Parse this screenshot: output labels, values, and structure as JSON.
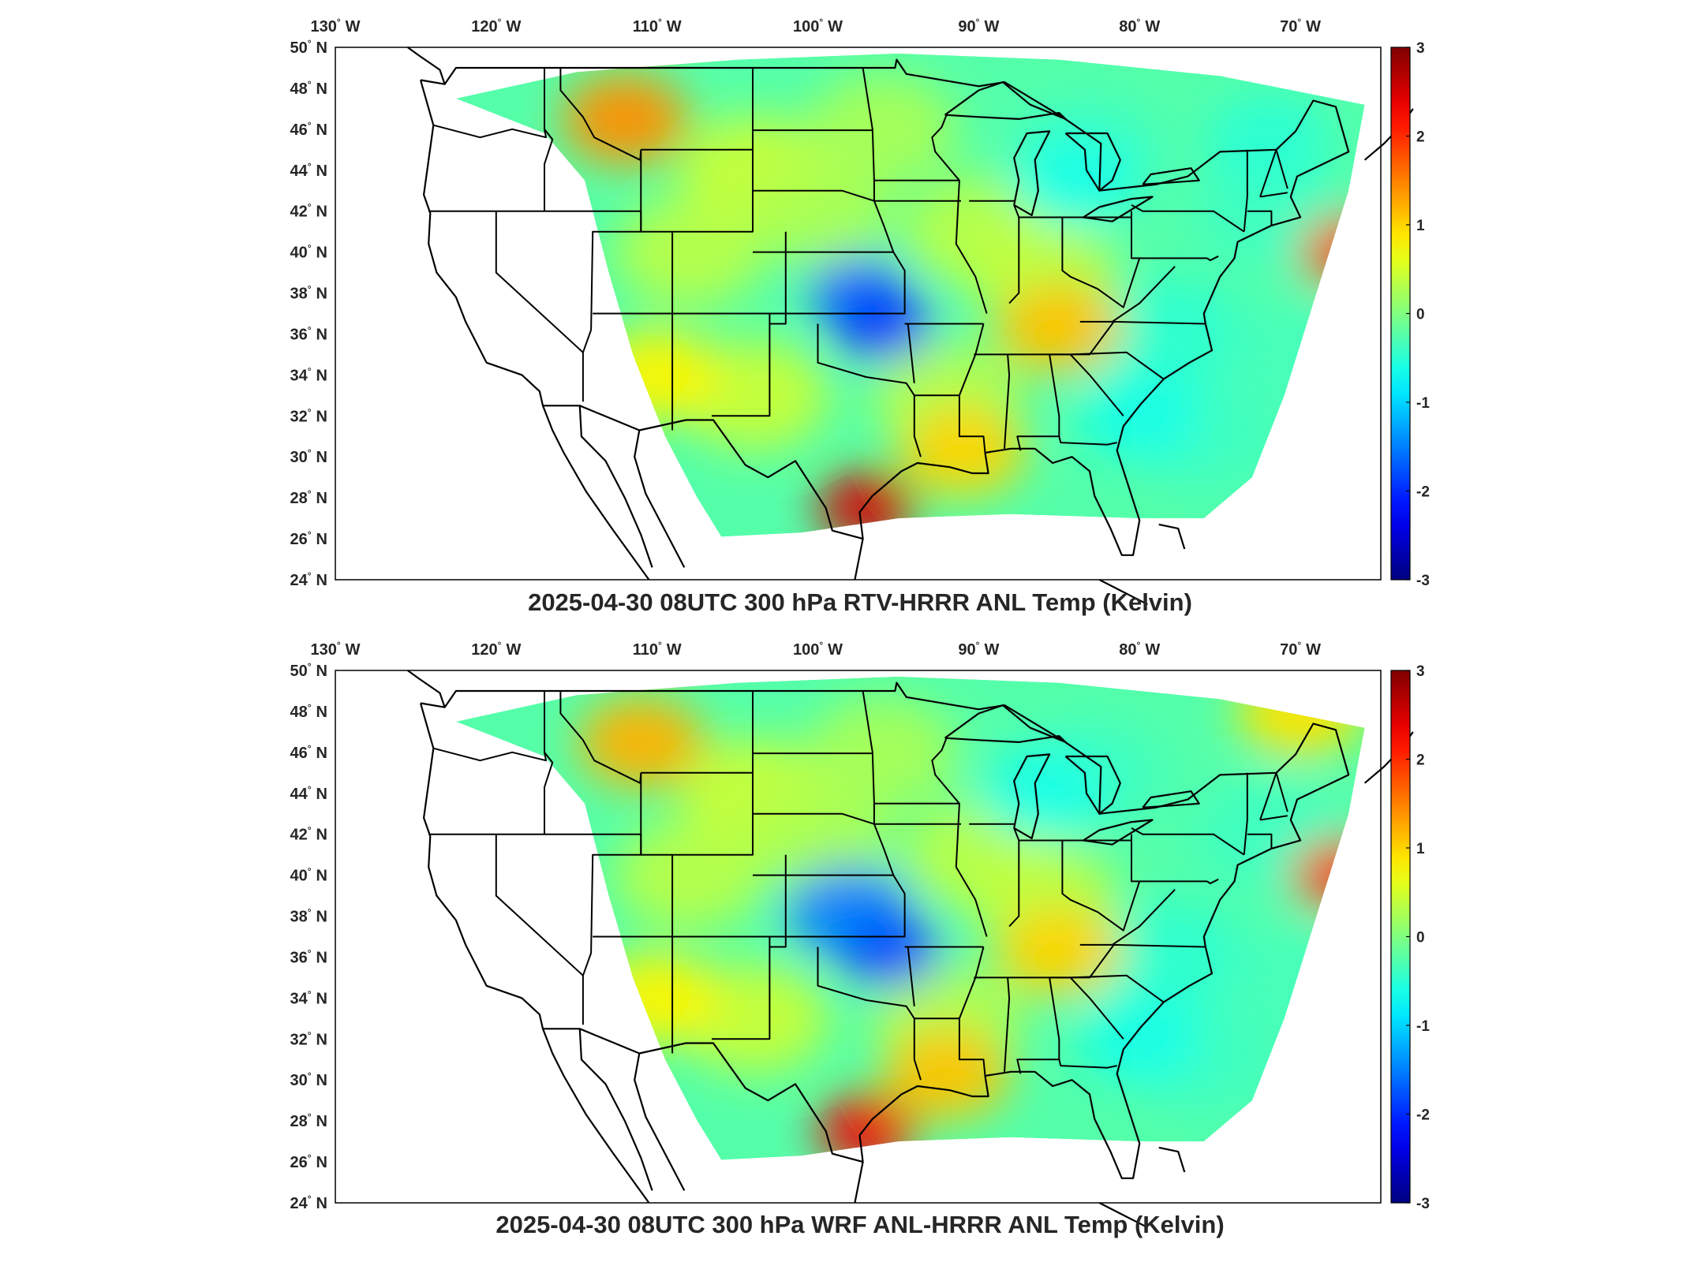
{
  "colors": {
    "land_outline": "#000000",
    "ocean_land_blank": "#ffffff",
    "colormap": "jet"
  },
  "axes": {
    "lon_ticks": [
      {
        "value": -130,
        "deg": "130",
        "hem": "W"
      },
      {
        "value": -120,
        "deg": "120",
        "hem": "W"
      },
      {
        "value": -110,
        "deg": "110",
        "hem": "W"
      },
      {
        "value": -100,
        "deg": "100",
        "hem": "W"
      },
      {
        "value": -90,
        "deg": "90",
        "hem": "W"
      },
      {
        "value": -80,
        "deg": "80",
        "hem": "W"
      },
      {
        "value": -70,
        "deg": "70",
        "hem": "W"
      }
    ],
    "lat_ticks": [
      {
        "value": 50,
        "deg": "50",
        "hem": "N"
      },
      {
        "value": 48,
        "deg": "48",
        "hem": "N"
      },
      {
        "value": 46,
        "deg": "46",
        "hem": "N"
      },
      {
        "value": 44,
        "deg": "44",
        "hem": "N"
      },
      {
        "value": 42,
        "deg": "42",
        "hem": "N"
      },
      {
        "value": 40,
        "deg": "40",
        "hem": "N"
      },
      {
        "value": 38,
        "deg": "38",
        "hem": "N"
      },
      {
        "value": 36,
        "deg": "36",
        "hem": "N"
      },
      {
        "value": 34,
        "deg": "34",
        "hem": "N"
      },
      {
        "value": 32,
        "deg": "32",
        "hem": "N"
      },
      {
        "value": 30,
        "deg": "30",
        "hem": "N"
      },
      {
        "value": 28,
        "deg": "28",
        "hem": "N"
      },
      {
        "value": 26,
        "deg": "26",
        "hem": "N"
      },
      {
        "value": 24,
        "deg": "24",
        "hem": "N"
      }
    ],
    "lon_range": [
      -130,
      -65
    ],
    "lat_range": [
      24,
      50
    ]
  },
  "colorbar": {
    "range": [
      -3,
      3
    ],
    "ticks": [
      "3",
      "2",
      "1",
      "0",
      "-1",
      "-2",
      "-3"
    ]
  },
  "panels": [
    {
      "id": "top",
      "title": "2025-04-30 08UTC 300 hPa RTV-HRRR ANL Temp (Kelvin)",
      "anomalies": [
        {
          "lon": -97.5,
          "lat": 38.0,
          "value": -1.6
        },
        {
          "lon": -96.0,
          "lat": 36.5,
          "value": -1.9
        },
        {
          "lon": -110.0,
          "lat": 34.0,
          "value": 0.8
        },
        {
          "lon": -112.0,
          "lat": 46.5,
          "value": 1.4
        },
        {
          "lon": -97.0,
          "lat": 27.5,
          "value": 2.5
        },
        {
          "lon": -91.0,
          "lat": 30.3,
          "value": 1.0
        },
        {
          "lon": -85.0,
          "lat": 36.3,
          "value": 1.1
        },
        {
          "lon": -67.0,
          "lat": 40.0,
          "value": 1.8
        },
        {
          "lon": -84.0,
          "lat": 43.5,
          "value": -0.6
        },
        {
          "lon": -72.0,
          "lat": 45.5,
          "value": -0.5
        },
        {
          "lon": -80.0,
          "lat": 32.0,
          "value": -0.6
        }
      ]
    },
    {
      "id": "bottom",
      "title": "2025-04-30 08UTC 300 hPa WRF ANL-HRRR ANL Temp (Kelvin)",
      "anomalies": [
        {
          "lon": -98.0,
          "lat": 38.2,
          "value": -1.5
        },
        {
          "lon": -95.5,
          "lat": 36.3,
          "value": -1.8
        },
        {
          "lon": -110.0,
          "lat": 34.0,
          "value": 0.8
        },
        {
          "lon": -111.0,
          "lat": 46.5,
          "value": 1.2
        },
        {
          "lon": -97.0,
          "lat": 27.5,
          "value": 2.3
        },
        {
          "lon": -92.0,
          "lat": 30.3,
          "value": 1.1
        },
        {
          "lon": -85.0,
          "lat": 36.3,
          "value": 1.0
        },
        {
          "lon": -67.5,
          "lat": 40.0,
          "value": 1.9
        },
        {
          "lon": -70.0,
          "lat": 48.0,
          "value": 0.9
        },
        {
          "lon": -86.0,
          "lat": 44.0,
          "value": -0.6
        },
        {
          "lon": -80.0,
          "lat": 32.0,
          "value": -0.6
        }
      ]
    }
  ]
}
